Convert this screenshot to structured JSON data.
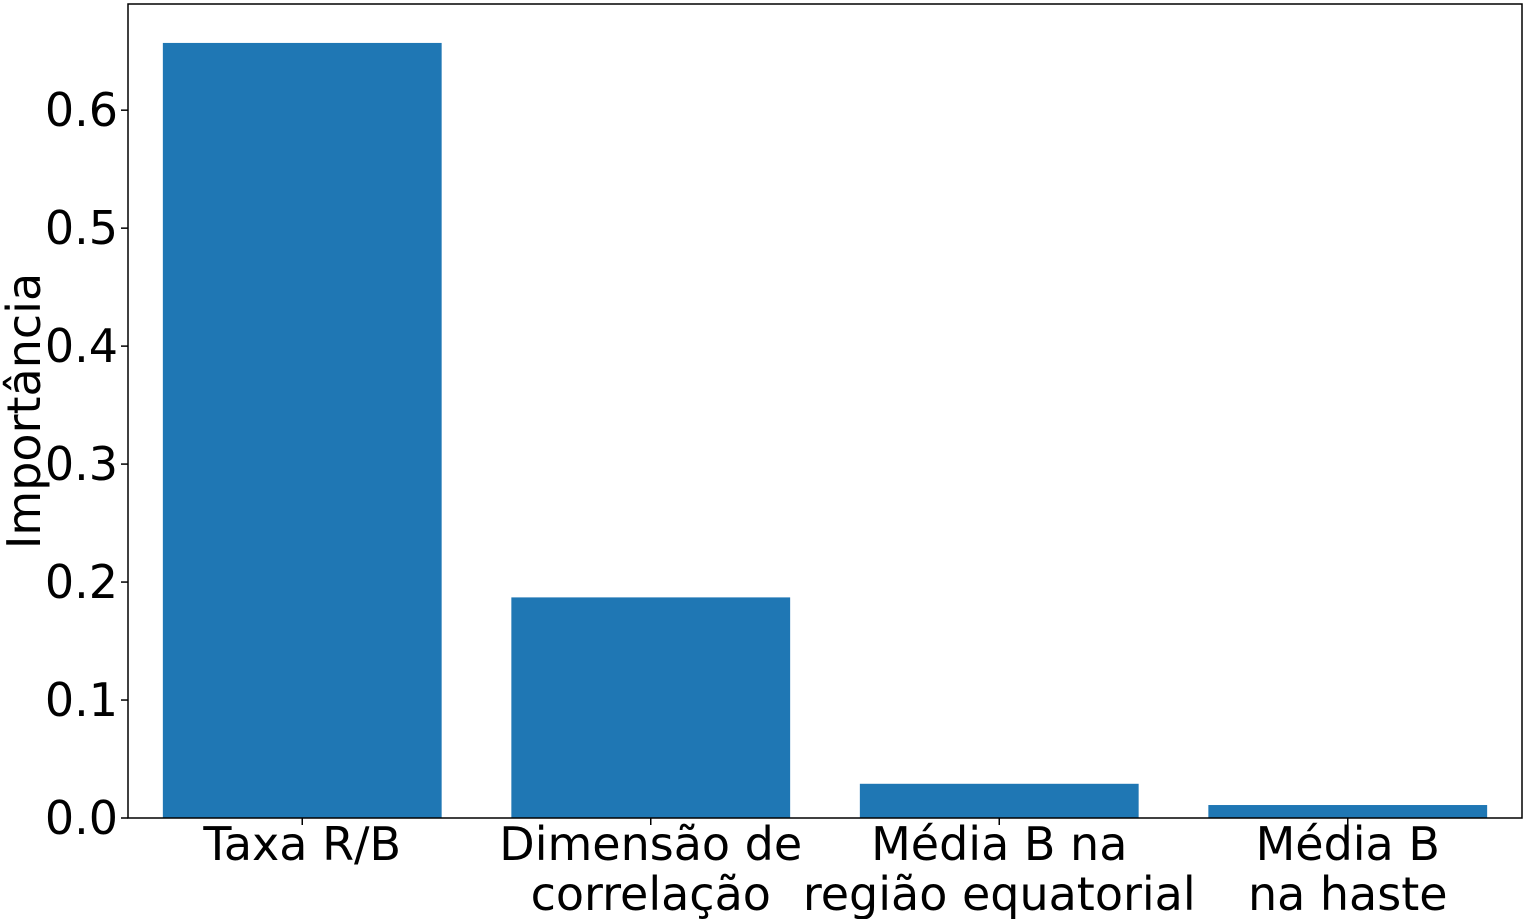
{
  "chart_data": {
    "type": "bar",
    "categories": [
      [
        "Taxa R/B"
      ],
      [
        "Dimensão de",
        "correlação"
      ],
      [
        "Média B na",
        "região equatorial"
      ],
      [
        "Média B",
        "na haste"
      ]
    ],
    "values": [
      0.657,
      0.187,
      0.029,
      0.011
    ],
    "title": "",
    "xlabel": "",
    "ylabel": "Importância",
    "ylim": [
      0,
      0.69
    ],
    "yticks": [
      "0.0",
      "0.1",
      "0.2",
      "0.3",
      "0.4",
      "0.5",
      "0.6"
    ],
    "grid": false,
    "legend": "none",
    "bar_color": "#1f77b4"
  }
}
